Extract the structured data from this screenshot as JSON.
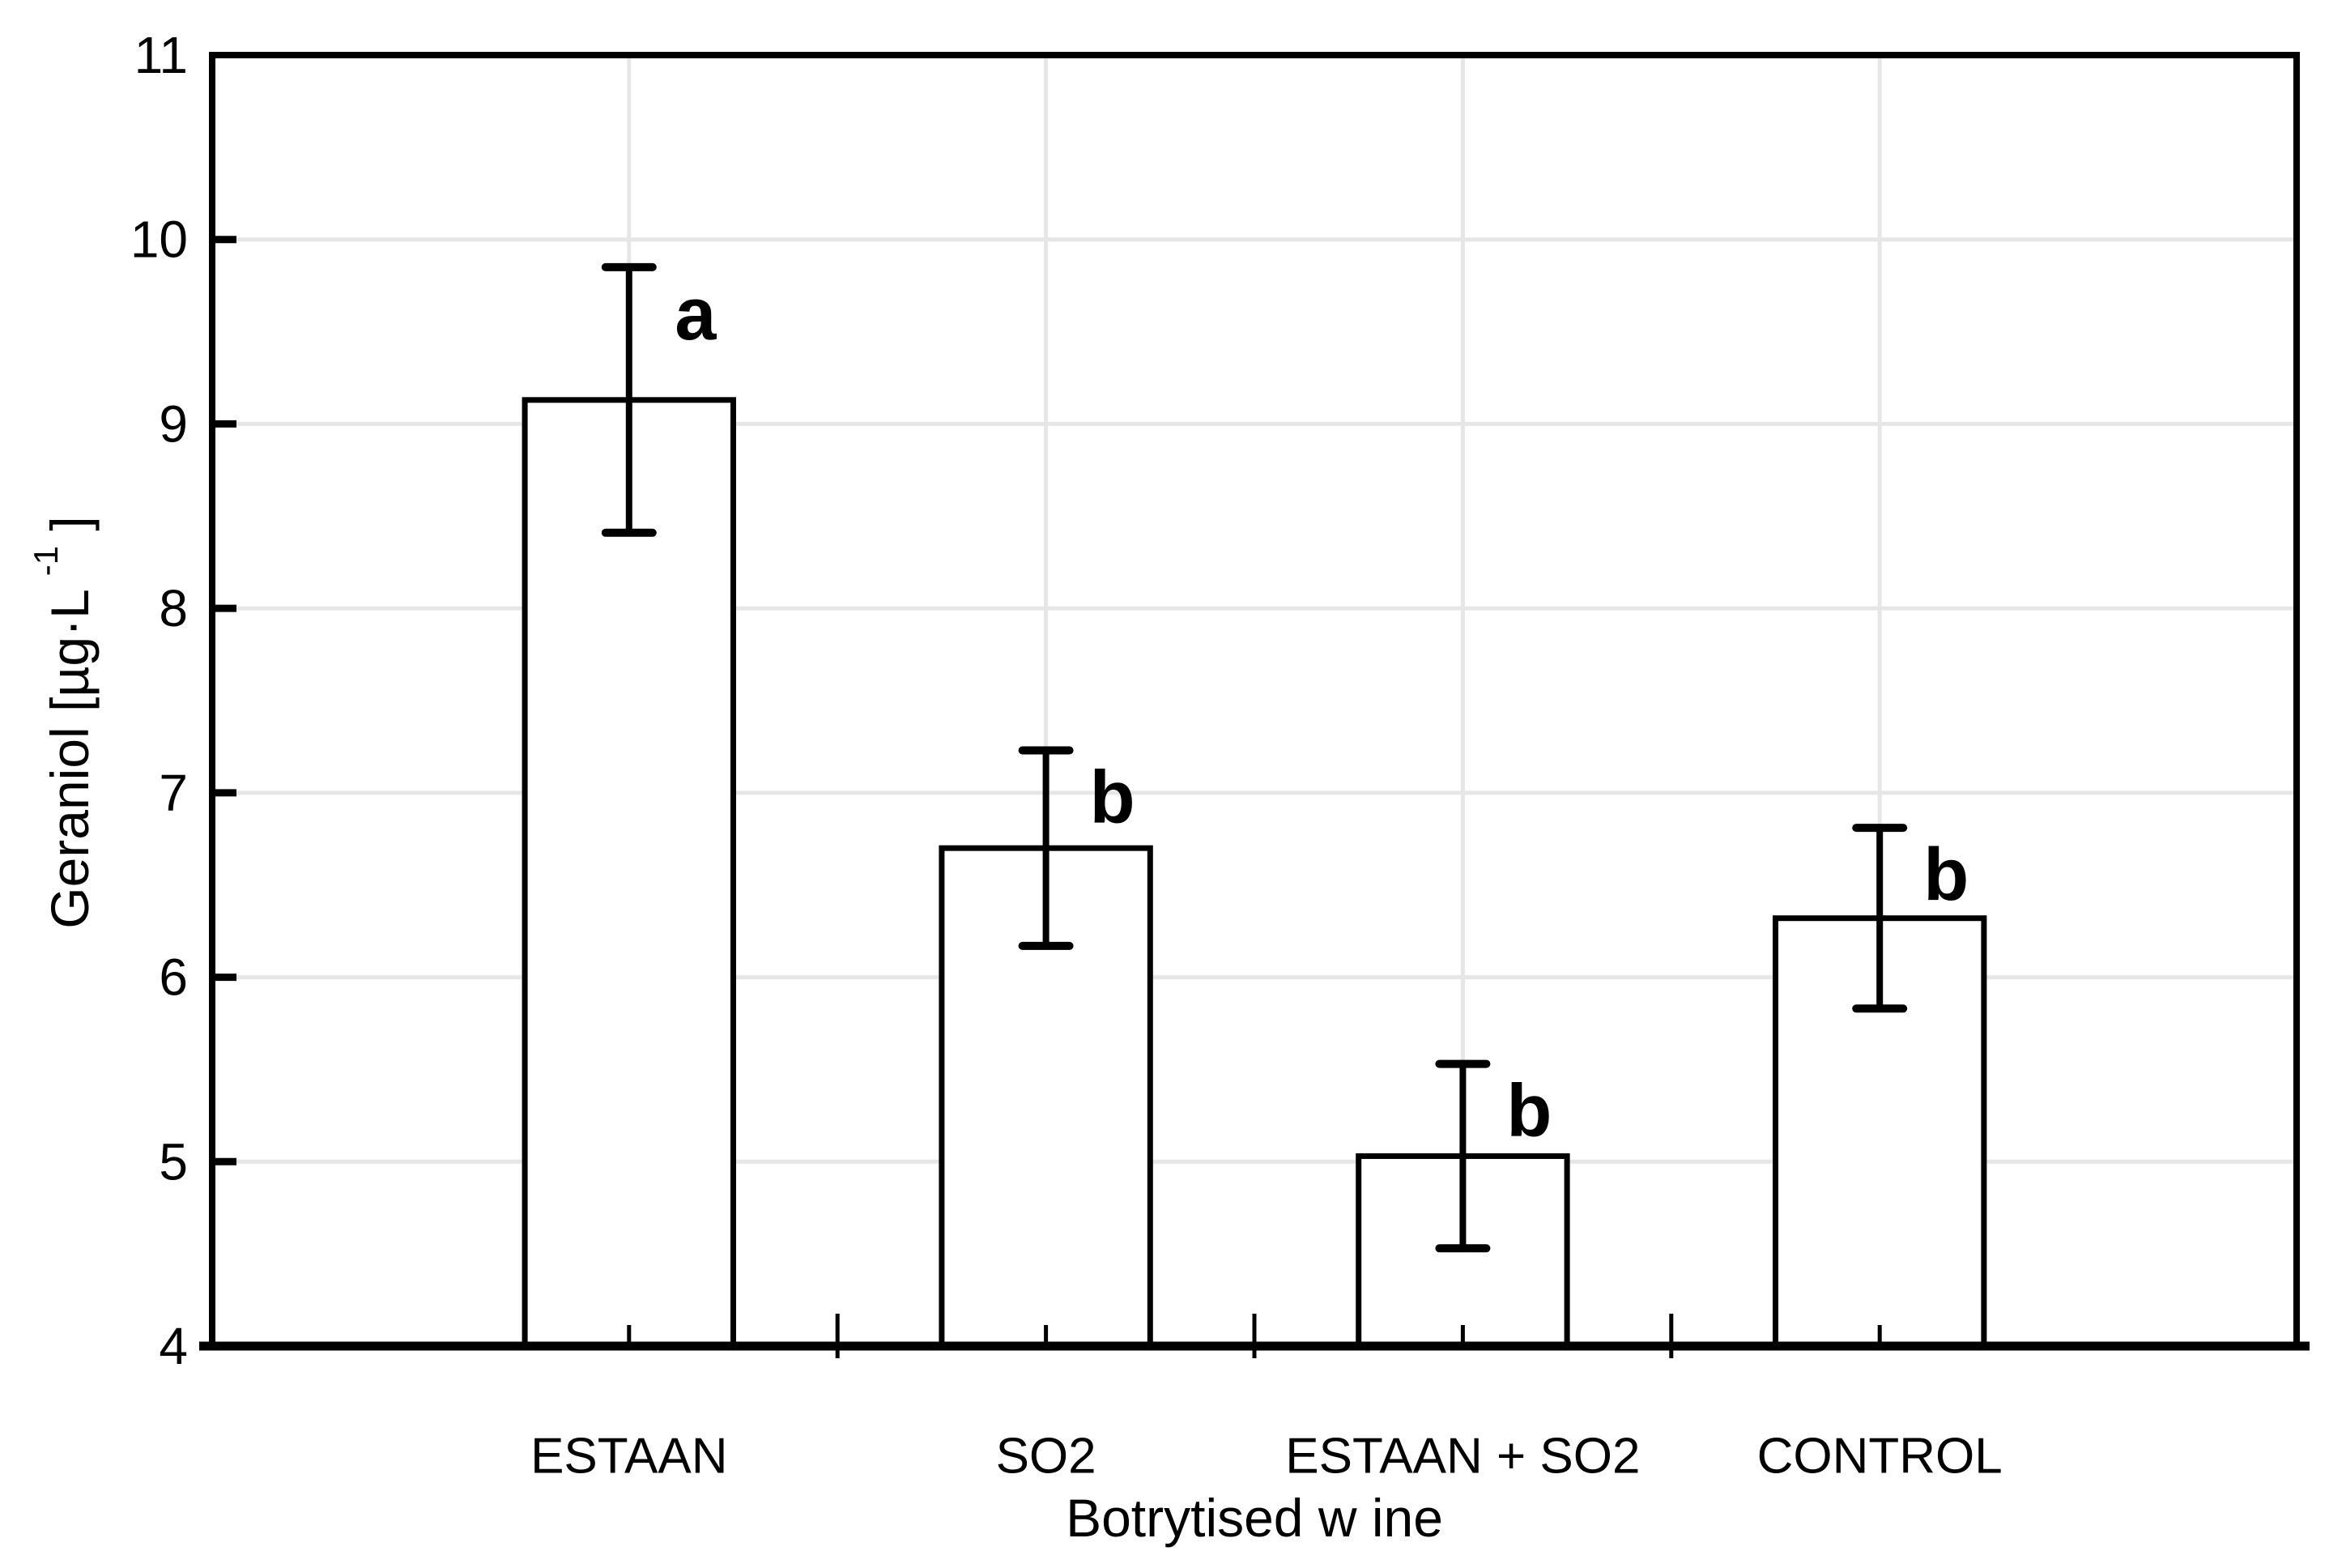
{
  "figure": {
    "background": "#ffffff",
    "line_color": "#000000",
    "gridline_color": "#e6e6e6"
  },
  "chart_data": {
    "type": "bar",
    "title": "",
    "categories": [
      "ESTAAN",
      "SO2",
      "ESTAAN + SO2",
      "CONTROL"
    ],
    "values": [
      9.13,
      6.7,
      5.03,
      6.32
    ],
    "error_upper": [
      9.85,
      7.23,
      5.53,
      6.81
    ],
    "error_lower": [
      8.41,
      6.17,
      4.53,
      5.83
    ],
    "significance_letters": [
      "a",
      "b",
      "b",
      "b"
    ],
    "xlabel": "Botrytised w ine",
    "ylabel": {
      "pre": "Geraniol [µg·L",
      "sup": "-1",
      "post": "]"
    },
    "ylim": [
      4,
      11
    ],
    "yticks": [
      11,
      10,
      9,
      8,
      7,
      6,
      5,
      4
    ],
    "grid": true,
    "legend": "none",
    "bar_fill": "#ffffff",
    "bar_stroke": "#000000"
  }
}
